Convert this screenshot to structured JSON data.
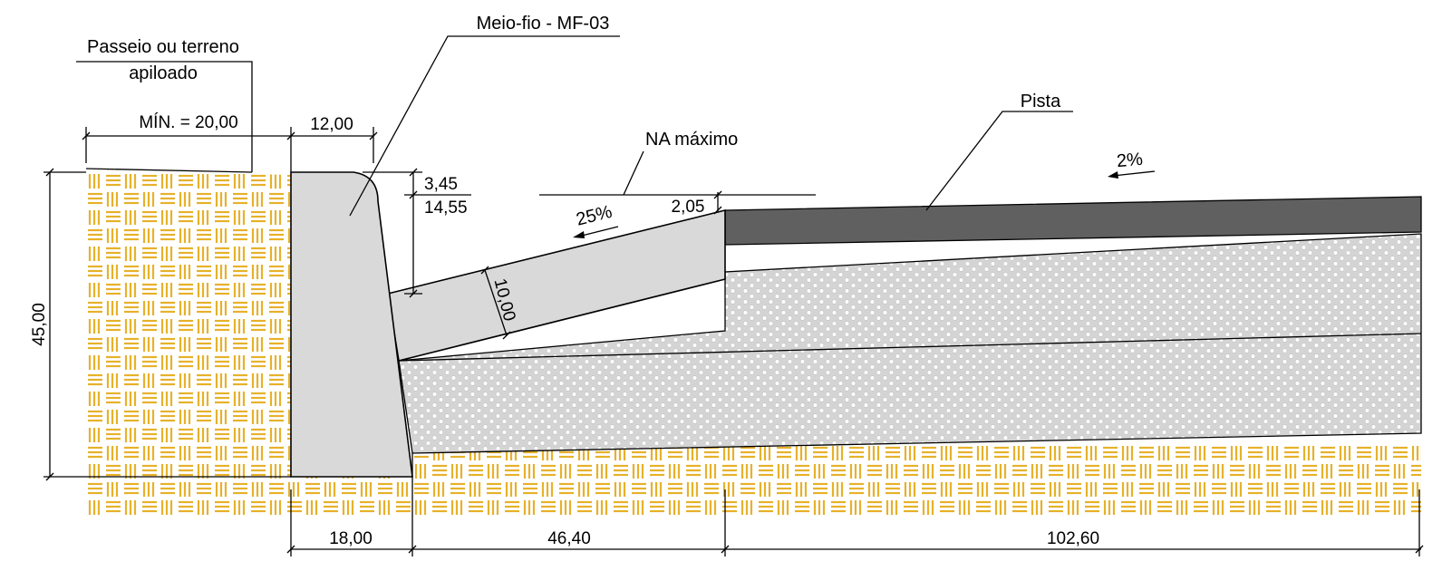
{
  "labels": {
    "passeio_line1": "Passeio ou terreno",
    "passeio_line2": "apiloado",
    "meio_fio": "Meio-fio - MF-03",
    "pista": "Pista",
    "na_maximo": "NA máximo",
    "slope_gutter": "25%",
    "slope_pista": "2%"
  },
  "dimensions": {
    "min_width": "MÍN. = 20,00",
    "top_width": "12,00",
    "height_total": "45,00",
    "curb_top_drop": "3,45",
    "curb_exposed": "14,55",
    "gutter_step": "2,05",
    "gutter_thickness": "10,00",
    "base_curb": "18,00",
    "gutter_width": "46,40",
    "pista_width": "102,60"
  },
  "colors": {
    "soil_fill": "#ffffff",
    "soil_hatch": "#e7b12a",
    "concrete": "#d9d9d9",
    "gravel_base": "#d4d4d4",
    "gravel_dot": "#ffffff",
    "asphalt": "#606060",
    "line": "#000000"
  }
}
